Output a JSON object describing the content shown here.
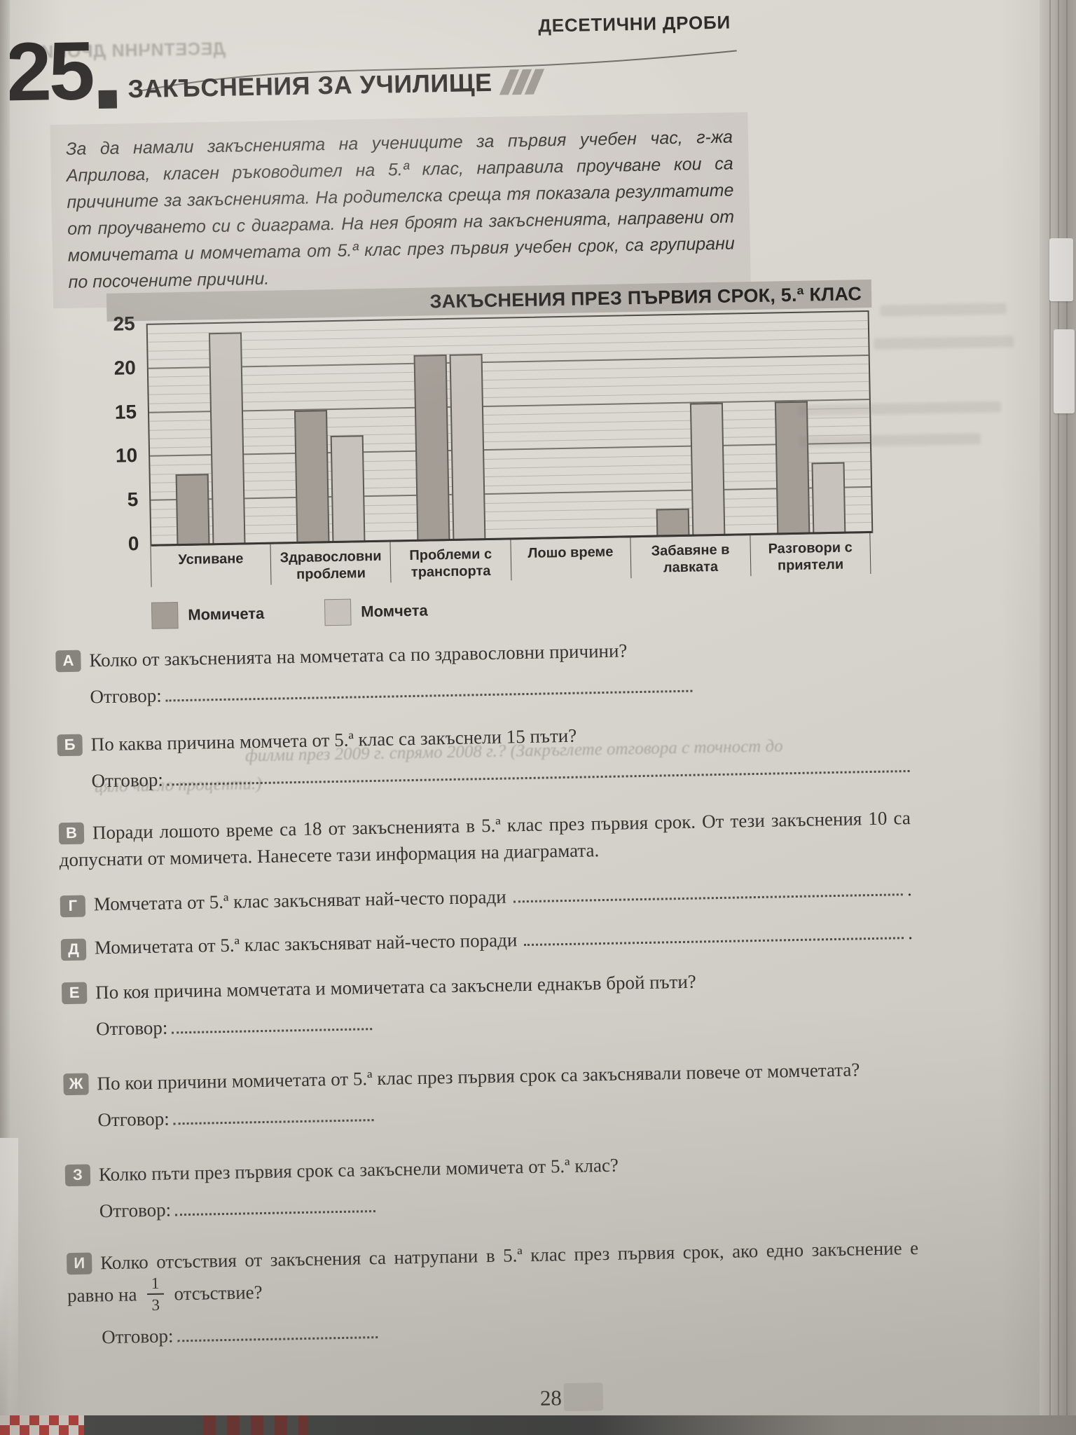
{
  "header": {
    "chapter": "ДЕСЕТИЧНИ ДРОБИ",
    "ghost_chapter_mirrored": "ДЕСЕТИЧНИ ДРОБИ",
    "lesson_number": "25",
    "lesson_title": "ЗАКЪСНЕНИЯ ЗА УЧИЛИЩЕ"
  },
  "intro_text": "За да намали закъсненията на учениците за първия учебен час, г-жа Априлова, класен ръководител на 5.ª клас, направила проучване кои са причините за закъсненията. На родителска среща тя показала резултатите от проучването си с диаграма. На нея броят на закъсненията, направени от момичетата и момчетата от 5.ª клас през първия учебен срок, са групирани по посочените причини.",
  "chart_data": {
    "type": "bar",
    "title": "ЗАКЪСНЕНИЯ ПРЕЗ ПЪРВИЯ СРОК, 5.ª КЛАС",
    "categories": [
      "Успиване",
      "Здравословни проблеми",
      "Проблеми с транспорта",
      "Лошо време",
      "Забавяне в лавката",
      "Разговори с приятели"
    ],
    "series": [
      {
        "name": "Момичета",
        "color": "#a49d96",
        "values": [
          8,
          15,
          21,
          null,
          3,
          15
        ]
      },
      {
        "name": "Момчета",
        "color": "#c7c2bb",
        "values": [
          24,
          12,
          21,
          null,
          15,
          8
        ]
      }
    ],
    "ylabel": "",
    "xlabel": "",
    "ylim": [
      0,
      25
    ],
    "ytick_step": 5,
    "minor_grid_step": 1,
    "grid": true,
    "legend_position": "bottom-left",
    "empty_category": "Лошо време"
  },
  "questions": [
    {
      "letter": "А",
      "text": "Колко от закъсненията на момчетата са по здравословни причини?",
      "answer_label": "Отговор:"
    },
    {
      "letter": "Б",
      "text": "По каква причина момчета от 5.ª клас са закъснели 15 пъти?",
      "answer_label": "Отговор:"
    },
    {
      "letter": "В",
      "text": "Поради лошото време са 18 от закъсненията в 5.ª клас през първия срок. От тези закъснения 10 са допуснати от момичета. Нанесете тази информация на диаграмата."
    },
    {
      "letter": "Г",
      "text": "Момчетата от 5.ª клас закъсняват най-често поради",
      "trailing_dots": true,
      "tail": "."
    },
    {
      "letter": "Д",
      "text": "Момичетата от 5.ª клас закъсняват най-често поради",
      "trailing_dots": true,
      "tail": "."
    },
    {
      "letter": "Е",
      "text": "По коя причина момчетата и момичетата са закъснели еднакъв брой пъти?",
      "answer_label": "Отговор:"
    },
    {
      "letter": "Ж",
      "text": "По кои причини момичетата от 5.ª клас през първия срок са закъснявали повече от момчетата?",
      "answer_label": "Отговор:"
    },
    {
      "letter": "З",
      "text": "Колко пъти през първия срок са закъснели момичета от 5.ª клас?",
      "answer_label": "Отговор:"
    },
    {
      "letter": "И",
      "text_before_fraction": "Колко отсъствия от закъснения са натрупани в 5.ª клас през първия срок, ако едно закъснение е равно на",
      "fraction": {
        "numerator": "1",
        "denominator": "3"
      },
      "text_after_fraction": "отсъствие?",
      "answer_label": "Отговор:"
    }
  ],
  "ghost_texts": {
    "line1": "филми през 2009 г. спрямо 2008 г.? (Закръглете отговора с точност до",
    "line2": "цяло число проценти.)"
  },
  "footer": {
    "page_number": "28"
  }
}
